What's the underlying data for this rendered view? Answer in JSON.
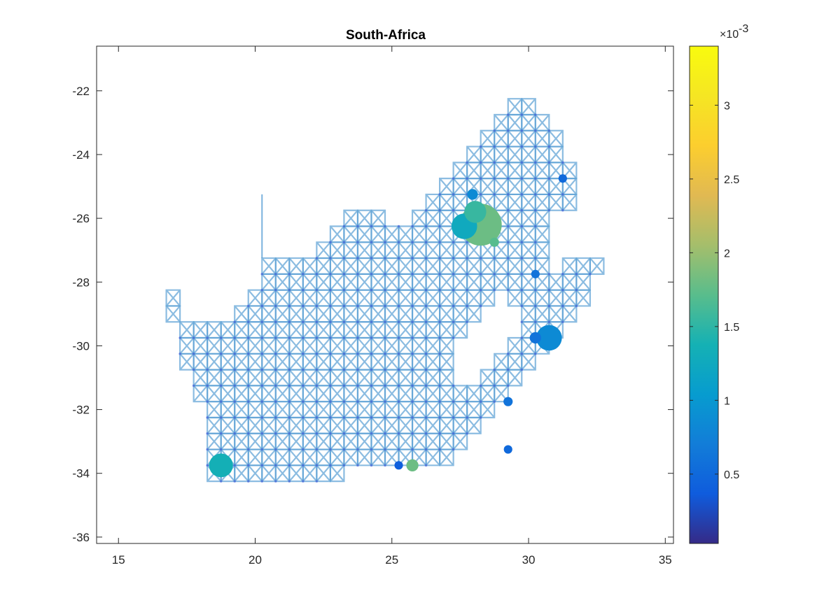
{
  "chart_data": {
    "type": "scatter",
    "title": "South-Africa",
    "xlabel": "",
    "ylabel": "",
    "xlim": [
      14.2,
      35.3
    ],
    "ylim": [
      -36.2,
      -20.6
    ],
    "xticks": [
      15,
      20,
      25,
      30,
      35
    ],
    "yticks": [
      -36,
      -34,
      -32,
      -30,
      -28,
      -26,
      -24,
      -22
    ],
    "grid": false,
    "legend": "none",
    "background_network": {
      "description": "grid mesh",
      "color": "#5a9fd4",
      "spacing_deg": 0.5,
      "outline": [
        [
          16.75,
          -28.75
        ],
        [
          17.25,
          -28.25
        ],
        [
          17.25,
          -29.25
        ],
        [
          18.25,
          -29.25
        ],
        [
          19.25,
          -29.25
        ],
        [
          19.75,
          -28.75
        ],
        [
          20.25,
          -28.25
        ],
        [
          20.25,
          -27.25
        ],
        [
          21.25,
          -27.25
        ],
        [
          22.25,
          -27.25
        ],
        [
          22.75,
          -26.75
        ],
        [
          23.25,
          -26.25
        ],
        [
          23.75,
          -25.75
        ],
        [
          24.75,
          -25.75
        ],
        [
          25.25,
          -26.25
        ],
        [
          26.25,
          -25.75
        ],
        [
          26.75,
          -25.25
        ],
        [
          27.25,
          -24.75
        ],
        [
          27.75,
          -24.25
        ],
        [
          28.25,
          -23.75
        ],
        [
          28.75,
          -23.25
        ],
        [
          29.25,
          -22.75
        ],
        [
          29.75,
          -22.25
        ],
        [
          30.25,
          -22.25
        ],
        [
          30.75,
          -22.75
        ],
        [
          31.25,
          -23.75
        ],
        [
          31.75,
          -24.75
        ],
        [
          31.75,
          -25.75
        ],
        [
          31.25,
          -25.75
        ],
        [
          30.75,
          -26.25
        ],
        [
          30.75,
          -27.25
        ],
        [
          31.25,
          -27.75
        ],
        [
          31.75,
          -27.25
        ],
        [
          32.75,
          -27.25
        ],
        [
          32.25,
          -28.25
        ],
        [
          31.75,
          -29.25
        ],
        [
          31.25,
          -29.75
        ],
        [
          30.75,
          -30.25
        ],
        [
          30.25,
          -30.75
        ],
        [
          29.75,
          -31.25
        ],
        [
          29.25,
          -31.75
        ],
        [
          28.75,
          -32.25
        ],
        [
          28.25,
          -32.75
        ],
        [
          27.75,
          -33.25
        ],
        [
          26.75,
          -33.75
        ],
        [
          25.75,
          -33.75
        ],
        [
          24.75,
          -33.75
        ],
        [
          23.75,
          -33.75
        ],
        [
          22.75,
          -34.25
        ],
        [
          21.75,
          -34.25
        ],
        [
          20.75,
          -34.25
        ],
        [
          19.75,
          -34.25
        ],
        [
          18.75,
          -34.25
        ],
        [
          18.25,
          -33.75
        ],
        [
          18.25,
          -33.25
        ],
        [
          18.25,
          -32.75
        ],
        [
          18.25,
          -31.75
        ],
        [
          17.75,
          -31.25
        ],
        [
          17.75,
          -30.75
        ],
        [
          17.25,
          -30.25
        ],
        [
          17.25,
          -29.75
        ],
        [
          17.25,
          -29.25
        ]
      ],
      "hole": [
        [
          27.25,
          -30.25
        ],
        [
          28.25,
          -29.25
        ],
        [
          28.75,
          -28.75
        ],
        [
          29.25,
          -28.25
        ],
        [
          29.75,
          -28.75
        ],
        [
          29.75,
          -29.75
        ],
        [
          29.25,
          -30.25
        ],
        [
          28.75,
          -30.75
        ],
        [
          28.25,
          -31.25
        ],
        [
          27.75,
          -31.25
        ],
        [
          27.25,
          -30.75
        ]
      ],
      "spike": [
        [
          20.25,
          -27.25
        ],
        [
          20.25,
          -25.25
        ]
      ]
    },
    "points": [
      {
        "x": 28.25,
        "y": -26.2,
        "value": 0.0018,
        "size": 1.0
      },
      {
        "x": 27.65,
        "y": -26.25,
        "value": 0.00125,
        "size": 0.55
      },
      {
        "x": 28.05,
        "y": -25.8,
        "value": 0.00155,
        "size": 0.45
      },
      {
        "x": 30.75,
        "y": -29.75,
        "value": 0.00085,
        "size": 0.55
      },
      {
        "x": 18.75,
        "y": -33.75,
        "value": 0.00135,
        "size": 0.5
      },
      {
        "x": 25.75,
        "y": -33.75,
        "value": 0.0018,
        "size": 0.18
      },
      {
        "x": 30.25,
        "y": -29.75,
        "value": 0.0006,
        "size": 0.16
      },
      {
        "x": 27.95,
        "y": -25.25,
        "value": 0.00085,
        "size": 0.14
      },
      {
        "x": 28.75,
        "y": -26.75,
        "value": 0.0017,
        "size": 0.1
      },
      {
        "x": 25.25,
        "y": -33.75,
        "value": 0.0004,
        "size": 0.08
      },
      {
        "x": 29.25,
        "y": -31.75,
        "value": 0.0006,
        "size": 0.1
      },
      {
        "x": 31.25,
        "y": -24.75,
        "value": 0.0005,
        "size": 0.08
      },
      {
        "x": 30.25,
        "y": -27.75,
        "value": 0.0006,
        "size": 0.08
      },
      {
        "x": 29.25,
        "y": -33.25,
        "value": 0.0005,
        "size": 0.08
      }
    ],
    "colorbar": {
      "min": 3e-05,
      "max": 0.0034,
      "ticks": [
        0.5,
        1,
        1.5,
        2,
        2.5,
        3
      ],
      "tick_labels": [
        "0.5",
        "1",
        "1.5",
        "2",
        "2.5",
        "3"
      ],
      "multiplier": "×10",
      "exponent": "-3",
      "colormap": "parula"
    }
  }
}
